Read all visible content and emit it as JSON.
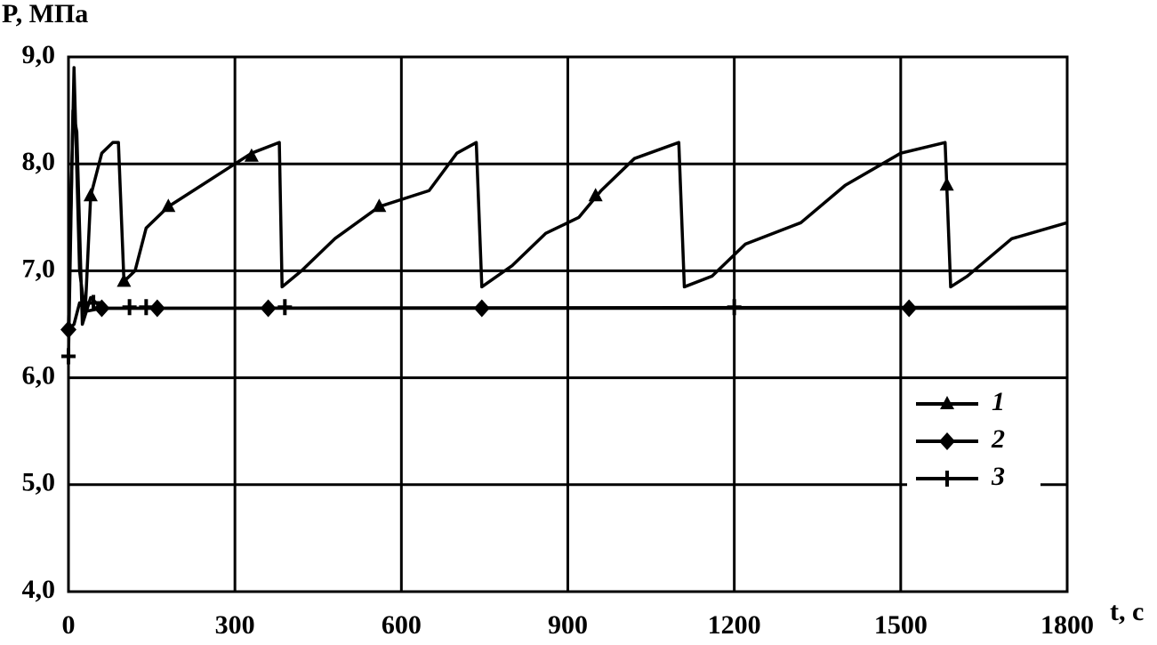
{
  "chart_data": {
    "type": "line",
    "y_label": "P, МПа",
    "x_label": "t, c",
    "xlim": [
      0,
      1800
    ],
    "xticks": [
      0,
      300,
      600,
      900,
      1200,
      1500,
      1800
    ],
    "ylim": [
      4,
      9
    ],
    "yticks": [
      {
        "value": 4,
        "label": "4,0"
      },
      {
        "value": 5,
        "label": "5,0"
      },
      {
        "value": 6,
        "label": "6,0"
      },
      {
        "value": 7,
        "label": "7,0"
      },
      {
        "value": 8,
        "label": "8,0"
      },
      {
        "value": 9,
        "label": "9,0"
      }
    ],
    "grid": true,
    "legend": "lower right",
    "series": [
      {
        "name": "1",
        "color": "#000000",
        "marker": "triangle",
        "x": [
          0,
          10,
          20,
          30,
          40,
          60,
          80,
          90,
          100,
          120,
          140,
          180,
          240,
          300,
          330,
          380,
          385,
          420,
          480,
          560,
          620,
          650,
          700,
          735,
          745,
          800,
          860,
          920,
          960,
          1020,
          1100,
          1110,
          1160,
          1220,
          1320,
          1400,
          1500,
          1580,
          1590,
          1620,
          1700,
          1800
        ],
        "values": [
          6.5,
          8.9,
          7.0,
          6.6,
          7.7,
          8.1,
          8.2,
          8.2,
          6.9,
          7.0,
          7.4,
          7.6,
          7.8,
          8.0,
          8.1,
          8.2,
          6.85,
          7.0,
          7.3,
          7.6,
          7.7,
          7.75,
          8.1,
          8.2,
          6.85,
          7.05,
          7.35,
          7.5,
          7.75,
          8.05,
          8.2,
          6.85,
          6.95,
          7.25,
          7.45,
          7.8,
          8.1,
          8.2,
          6.85,
          6.95,
          7.3,
          7.45
        ],
        "markers": {
          "x": [
            40,
            100,
            180,
            330,
            560,
            950,
            1583
          ],
          "values": [
            7.7,
            6.9,
            7.6,
            8.07,
            7.6,
            7.7,
            7.8
          ]
        }
      },
      {
        "name": "2",
        "color": "#000000",
        "marker": "diamond",
        "x": [
          0,
          10,
          20,
          30,
          60,
          1800
        ],
        "values": [
          6.45,
          6.5,
          6.7,
          6.62,
          6.65,
          6.65
        ],
        "markers": {
          "x": [
            0,
            60,
            160,
            360,
            745,
            1515
          ],
          "values": [
            6.45,
            6.65,
            6.65,
            6.65,
            6.65,
            6.65
          ]
        }
      },
      {
        "name": "3",
        "color": "#000000",
        "marker": "plus",
        "x": [
          0,
          8,
          15,
          25,
          40,
          60,
          1800
        ],
        "values": [
          6.2,
          8.5,
          8.3,
          6.5,
          6.75,
          6.65,
          6.66
        ],
        "markers": {
          "x": [
            0,
            45,
            110,
            140,
            390,
            1200
          ],
          "values": [
            6.2,
            6.7,
            6.66,
            6.66,
            6.66,
            6.66
          ]
        }
      }
    ]
  }
}
